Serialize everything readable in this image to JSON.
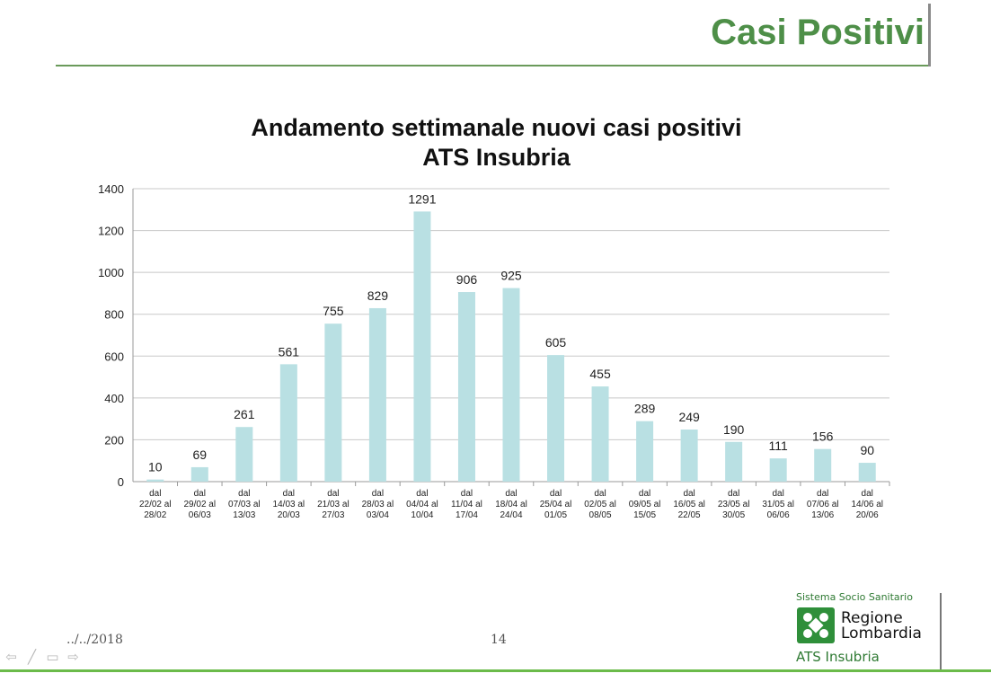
{
  "slide": {
    "title": "Casi Positivi",
    "date": "../../2018",
    "page_number": "14"
  },
  "logo": {
    "top_text": "Sistema Socio Sanitario",
    "name_line1": "Regione",
    "name_line2": "Lombardia",
    "sub_text": "ATS Insubria"
  },
  "colors": {
    "title_green": "#4e8f48",
    "bar": "#b9e0e3",
    "footer_green": "#6bbb4a"
  },
  "chart_data": {
    "type": "bar",
    "title_line1": "Andamento settimanale nuovi casi positivi",
    "title_line2": "ATS Insubria",
    "categories": [
      [
        "dal",
        "22/02 al",
        "28/02"
      ],
      [
        "dal",
        "29/02 al",
        "06/03"
      ],
      [
        "dal",
        "07/03 al",
        "13/03"
      ],
      [
        "dal",
        "14/03 al",
        "20/03"
      ],
      [
        "dal",
        "21/03 al",
        "27/03"
      ],
      [
        "dal",
        "28/03 al",
        "03/04"
      ],
      [
        "dal",
        "04/04 al",
        "10/04"
      ],
      [
        "dal",
        "11/04 al",
        "17/04"
      ],
      [
        "dal",
        "18/04 al",
        "24/04"
      ],
      [
        "dal",
        "25/04 al",
        "01/05"
      ],
      [
        "dal",
        "02/05 al",
        "08/05"
      ],
      [
        "dal",
        "09/05 al",
        "15/05"
      ],
      [
        "dal",
        "16/05 al",
        "22/05"
      ],
      [
        "dal",
        "23/05 al",
        "30/05"
      ],
      [
        "dal",
        "31/05 al",
        "06/06"
      ],
      [
        "dal",
        "07/06 al",
        "13/06"
      ],
      [
        "dal",
        "14/06 al",
        "20/06"
      ]
    ],
    "values": [
      10,
      69,
      261,
      561,
      755,
      829,
      1291,
      906,
      925,
      605,
      455,
      289,
      249,
      190,
      111,
      156,
      90
    ],
    "ylim": [
      0,
      1400
    ],
    "yticks": [
      0,
      200,
      400,
      600,
      800,
      1000,
      1200,
      1400
    ],
    "grid": true,
    "data_labels": true
  }
}
